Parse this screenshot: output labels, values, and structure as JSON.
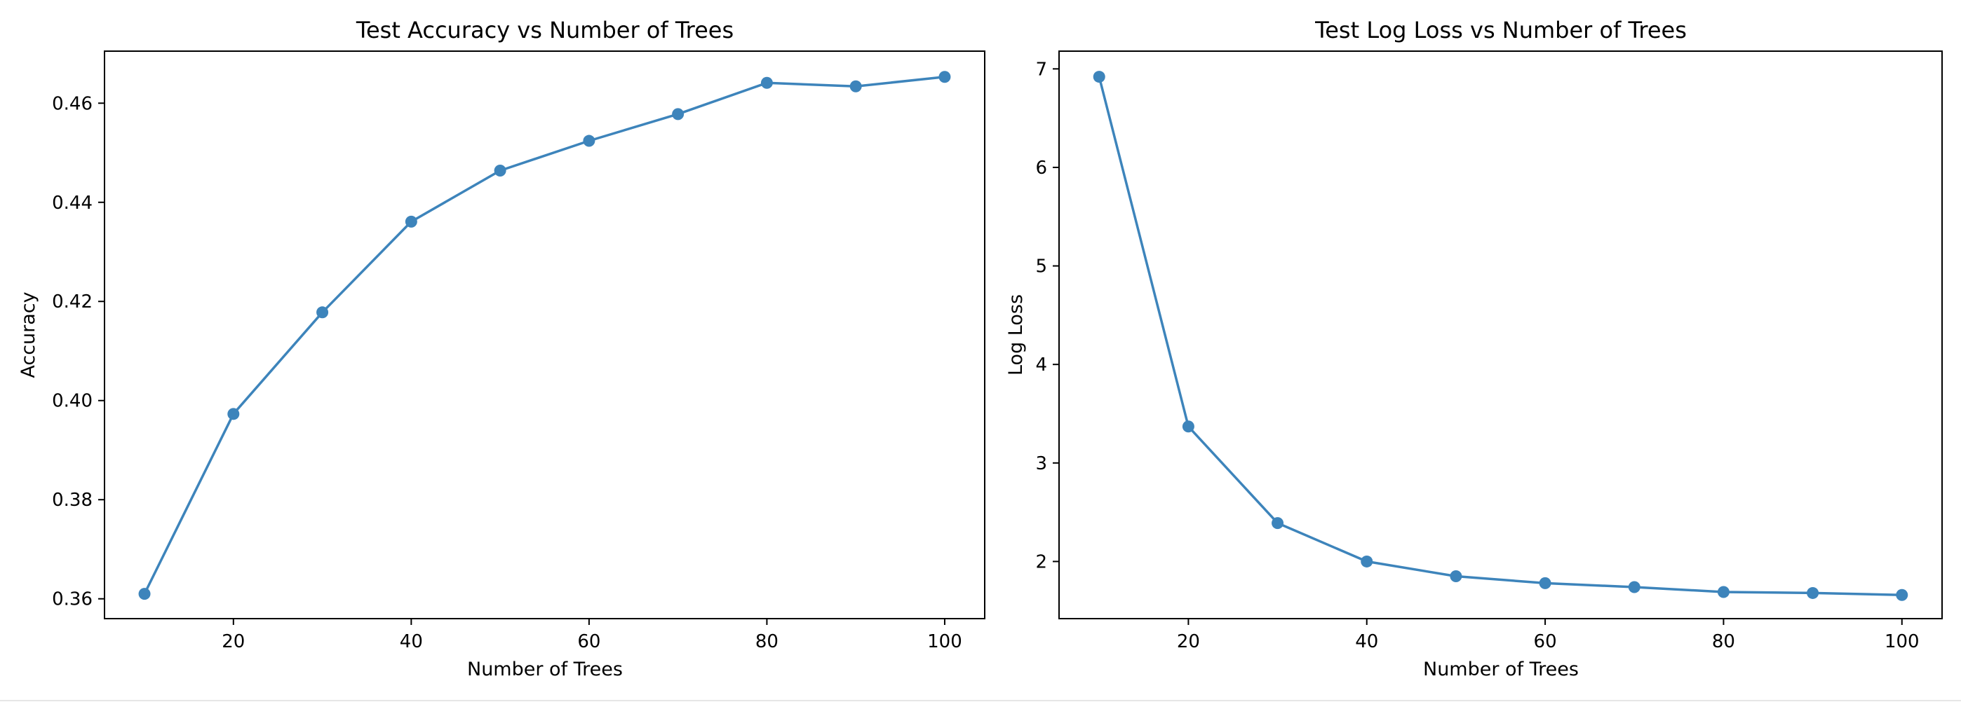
{
  "chart_data": [
    {
      "type": "line",
      "title": "Test Accuracy vs Number of Trees",
      "xlabel": "Number of Trees",
      "ylabel": "Accuracy",
      "x": [
        10,
        20,
        30,
        40,
        50,
        60,
        70,
        80,
        90,
        100
      ],
      "series": [
        {
          "values": [
            0.361,
            0.3973,
            0.4178,
            0.4361,
            0.4464,
            0.4524,
            0.4578,
            0.4641,
            0.4634,
            0.4653
          ]
        }
      ],
      "xlim": [
        5.5,
        104.5
      ],
      "ylim": [
        0.356,
        0.4705
      ],
      "xticks": [
        20,
        40,
        60,
        80,
        100
      ],
      "yticks": [
        0.36,
        0.38,
        0.4,
        0.42,
        0.44,
        0.46
      ],
      "xtick_labels": [
        "20",
        "40",
        "60",
        "80",
        "100"
      ],
      "ytick_labels": [
        "0.36",
        "0.38",
        "0.40",
        "0.42",
        "0.44",
        "0.46"
      ],
      "grid": false,
      "marker": "circle",
      "color": "#3d84bb"
    },
    {
      "type": "line",
      "title": "Test Log Loss vs Number of Trees",
      "xlabel": "Number of Trees",
      "ylabel": "Log Loss",
      "x": [
        10,
        20,
        30,
        40,
        50,
        60,
        70,
        80,
        90,
        100
      ],
      "series": [
        {
          "values": [
            6.92,
            3.37,
            2.39,
            2.0,
            1.85,
            1.78,
            1.74,
            1.69,
            1.68,
            1.66
          ]
        }
      ],
      "xlim": [
        5.5,
        104.5
      ],
      "ylim": [
        1.42,
        7.18
      ],
      "xticks": [
        20,
        40,
        60,
        80,
        100
      ],
      "yticks": [
        2,
        3,
        4,
        5,
        6,
        7
      ],
      "xtick_labels": [
        "20",
        "40",
        "60",
        "80",
        "100"
      ],
      "ytick_labels": [
        "2",
        "3",
        "4",
        "5",
        "6",
        "7"
      ],
      "grid": false,
      "marker": "circle",
      "color": "#3d84bb"
    }
  ]
}
